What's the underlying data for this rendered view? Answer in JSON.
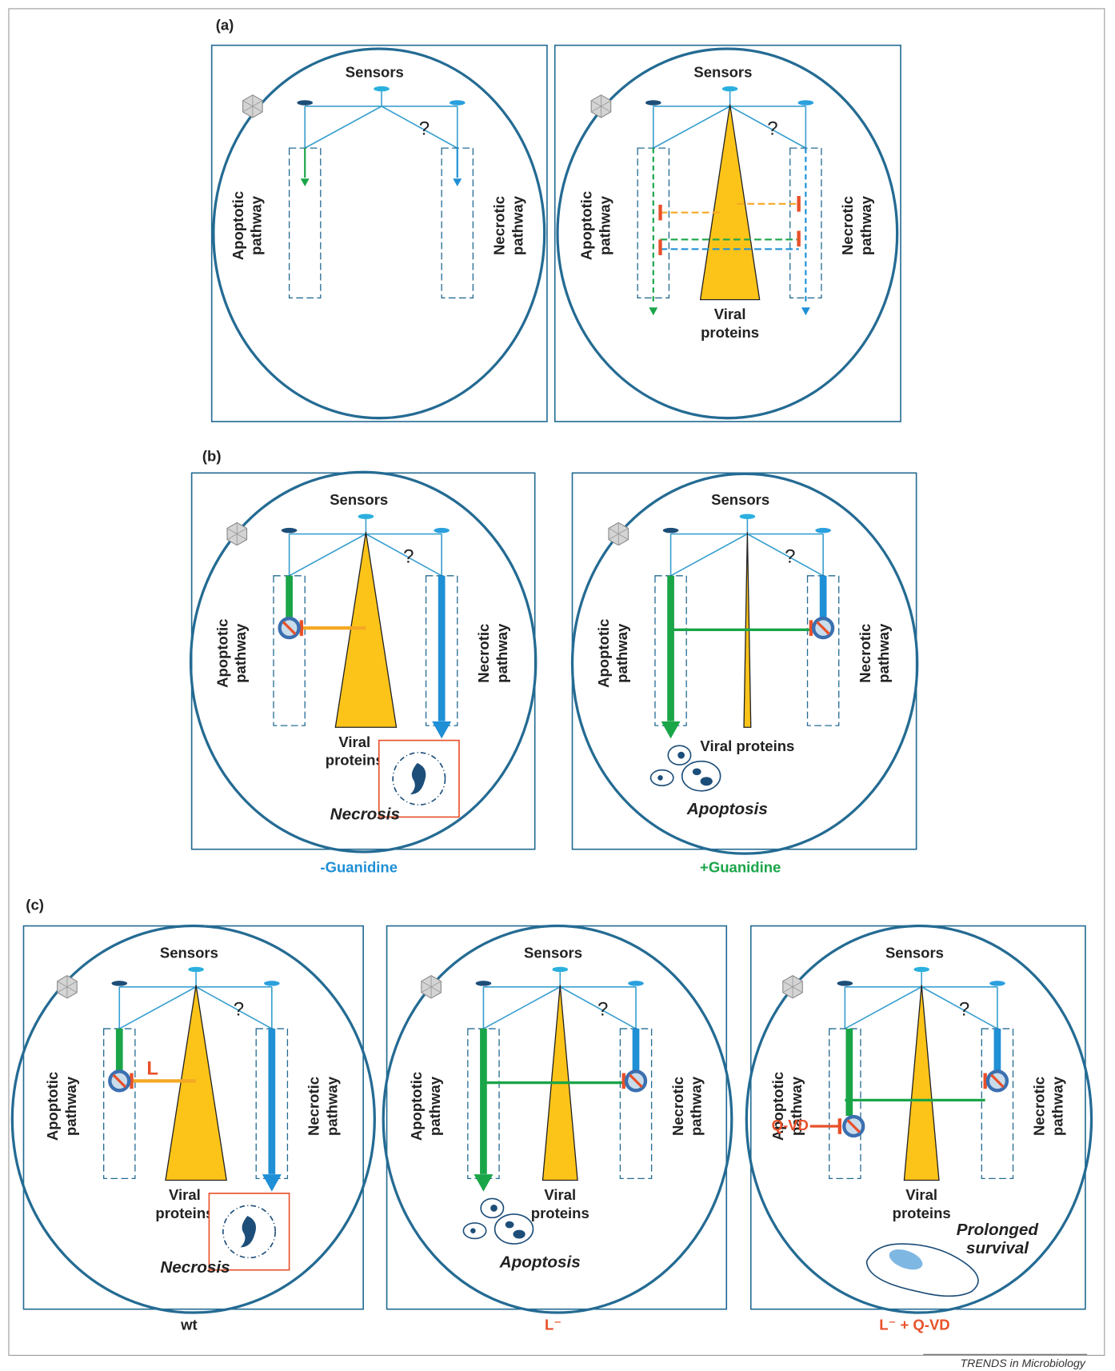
{
  "panels": [
    {
      "label": "(a)",
      "subpanels": [
        {
          "sensors": "Sensors",
          "question": "?",
          "apoptotic": [
            "Apoptotic",
            "pathway"
          ],
          "necrotic": [
            "Necrotic",
            "pathway"
          ]
        },
        {
          "sensors": "Sensors",
          "question": "?",
          "apoptotic": [
            "Apoptotic",
            "pathway"
          ],
          "necrotic": [
            "Necrotic",
            "pathway"
          ],
          "viral": [
            "Viral",
            "proteins"
          ]
        }
      ]
    },
    {
      "label": "(b)",
      "subpanels": [
        {
          "sensors": "Sensors",
          "question": "?",
          "apoptotic": [
            "Apoptotic",
            "pathway"
          ],
          "necrotic": [
            "Necrotic",
            "pathway"
          ],
          "viral": [
            "Viral",
            "proteins"
          ],
          "outcome": [
            "Necrosis"
          ],
          "caption": "-Guanidine"
        },
        {
          "sensors": "Sensors",
          "question": "?",
          "apoptotic": [
            "Apoptotic",
            "pathway"
          ],
          "necrotic": [
            "Necrotic",
            "pathway"
          ],
          "viral": [
            "Viral proteins"
          ],
          "outcome": [
            "Apoptosis"
          ],
          "caption": "+Guanidine"
        }
      ]
    },
    {
      "label": "(c)",
      "subpanels": [
        {
          "sensors": "Sensors",
          "question": "?",
          "apoptotic": [
            "Apoptotic",
            "pathway"
          ],
          "necrotic": [
            "Necrotic",
            "pathway"
          ],
          "viral": [
            "Viral",
            "proteins"
          ],
          "inhibitor": "L",
          "outcome": [
            "Necrosis"
          ],
          "caption": "wt"
        },
        {
          "sensors": "Sensors",
          "question": "?",
          "apoptotic": [
            "Apoptotic",
            "pathway"
          ],
          "necrotic": [
            "Necrotic",
            "pathway"
          ],
          "viral": [
            "Viral",
            "proteins"
          ],
          "outcome": [
            "Apoptosis"
          ],
          "caption": "L⁻"
        },
        {
          "sensors": "Sensors",
          "question": "?",
          "apoptotic": [
            "Apoptotic",
            "pathway"
          ],
          "necrotic": [
            "Necrotic",
            "pathway"
          ],
          "viral": [
            "Viral",
            "proteins"
          ],
          "inhibitor": "Q-VD",
          "outcome": [
            "Prolonged",
            "survival"
          ],
          "caption": "L⁻ + Q-VD"
        }
      ]
    }
  ],
  "footer": "TRENDS in Microbiology"
}
